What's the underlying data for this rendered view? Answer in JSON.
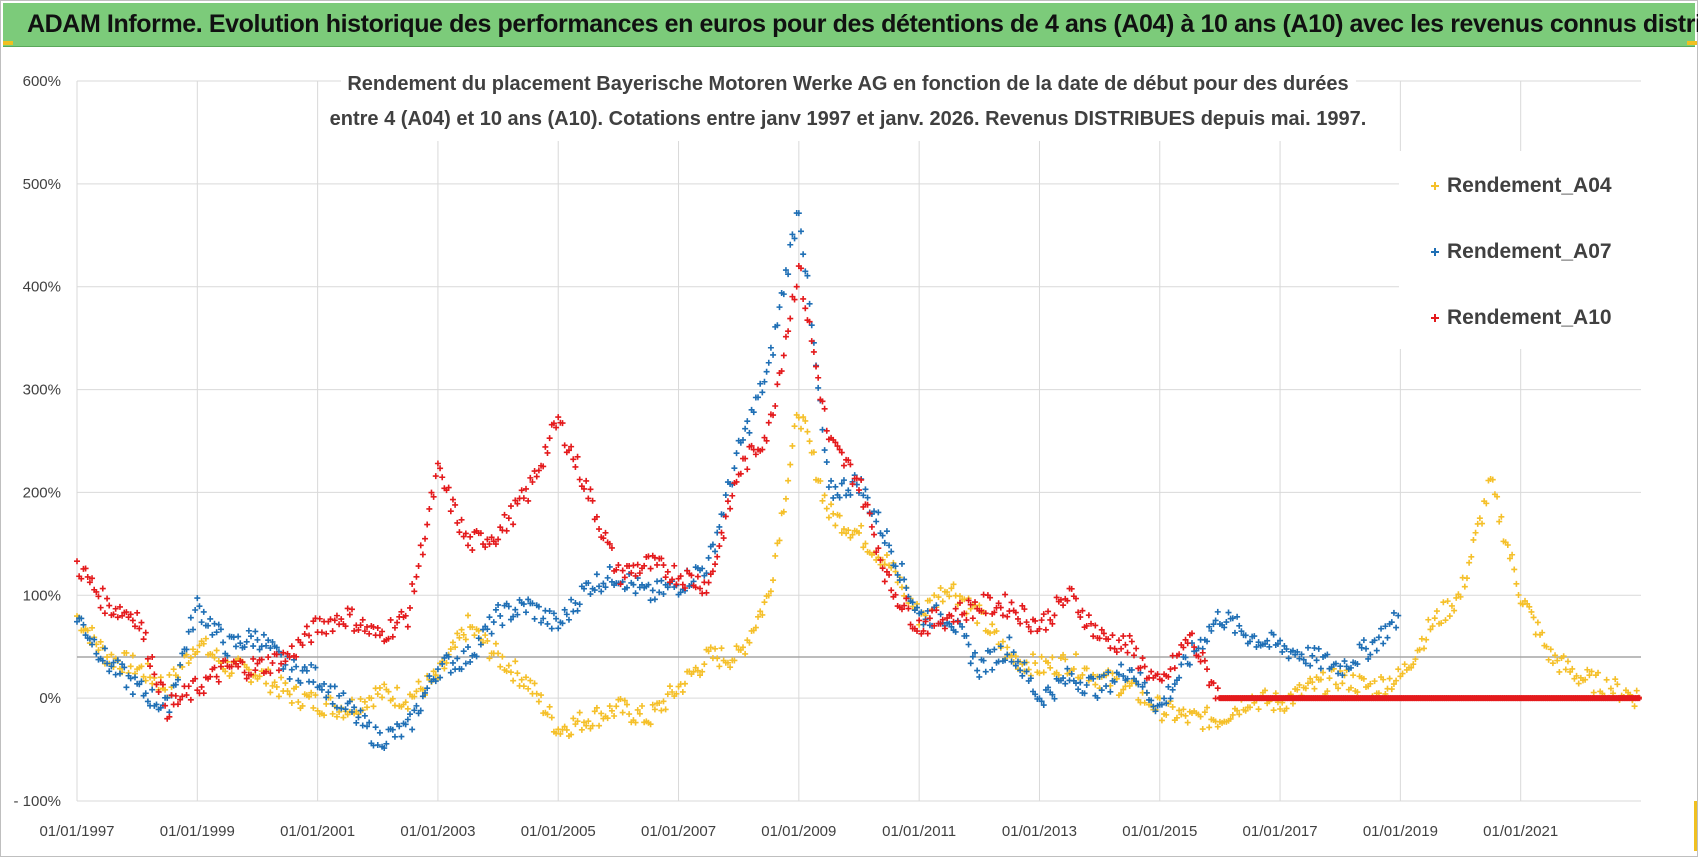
{
  "banner": {
    "title": "ADAM Informe. Evolution historique des performances en euros pour des détentions de 4 ans (A04) à 10 ans (A10) avec les revenus connus distribués"
  },
  "colors": {
    "A04": "#f5c02a",
    "A07": "#1f6fb5",
    "A10": "#e41a1c",
    "banner": "#7ccb7a",
    "grid": "#d9d9d9"
  },
  "chart_data": {
    "type": "scatter",
    "title_lines": [
      "Rendement du placement Bayerische Motoren Werke AG en fonction de la date de début pour des durées",
      "entre 4 (A04) et 10 ans (A10).  Cotations entre janv 1997 et janv. 2026. Revenus DISTRIBUES depuis mai. 1997."
    ],
    "xlabel": "",
    "ylabel": "",
    "x_range": [
      1997.0,
      2023.0
    ],
    "ylim": [
      -100,
      600
    ],
    "y_ticks": [
      600,
      500,
      400,
      300,
      200,
      100,
      0,
      -100
    ],
    "y_tick_labels": [
      "600%",
      "500%",
      "400%",
      "300%",
      "200%",
      "100%",
      "0%",
      "- 100%"
    ],
    "x_ticks": [
      1997,
      1999,
      2001,
      2003,
      2005,
      2007,
      2009,
      2011,
      2013,
      2015,
      2017,
      2019,
      2021
    ],
    "x_tick_labels": [
      "01/01/1997",
      "01/01/1999",
      "01/01/2001",
      "01/01/2003",
      "01/01/2005",
      "01/01/2007",
      "01/01/2009",
      "01/01/2011",
      "01/01/2013",
      "01/01/2015",
      "01/01/2017",
      "01/01/2019",
      "01/01/2021"
    ],
    "reference_line": 40,
    "legend_position": "top-right",
    "series": [
      {
        "name": "Rendement_A04",
        "color": "#f5c02a",
        "x": [
          1997.0,
          1997.5,
          1998.0,
          1998.5,
          1999.0,
          1999.5,
          2000.0,
          2000.5,
          2001.0,
          2001.5,
          2002.0,
          2002.5,
          2003.0,
          2003.5,
          2004.0,
          2004.5,
          2005.0,
          2005.5,
          2006.0,
          2006.5,
          2007.0,
          2007.5,
          2008.0,
          2008.5,
          2009.0,
          2009.5,
          2010.0,
          2010.5,
          2011.0,
          2011.5,
          2012.0,
          2012.5,
          2013.0,
          2013.5,
          2014.0,
          2014.5,
          2015.0,
          2015.5,
          2016.0,
          2016.5,
          2017.0,
          2017.5,
          2018.0,
          2018.5,
          2019.0,
          2019.5,
          2020.0,
          2020.5,
          2021.0,
          2021.5,
          2022.0,
          2022.5,
          2023.0
        ],
        "values": [
          80,
          40,
          30,
          10,
          55,
          30,
          25,
          5,
          -5,
          -10,
          5,
          0,
          20,
          70,
          40,
          15,
          -30,
          -20,
          -10,
          -20,
          10,
          40,
          40,
          100,
          280,
          180,
          160,
          130,
          80,
          110,
          80,
          40,
          30,
          35,
          20,
          10,
          -10,
          -20,
          -20,
          0,
          -5,
          10,
          20,
          10,
          20,
          70,
          100,
          210,
          100,
          40,
          20,
          10,
          0
        ]
      },
      {
        "name": "Rendement_A07",
        "color": "#1f6fb5",
        "x": [
          1997.0,
          1997.5,
          1998.0,
          1998.5,
          1999.0,
          1999.5,
          2000.0,
          2000.5,
          2001.0,
          2001.5,
          2002.0,
          2002.5,
          2003.0,
          2003.5,
          2004.0,
          2004.5,
          2005.0,
          2005.5,
          2006.0,
          2006.5,
          2007.0,
          2007.5,
          2008.0,
          2008.5,
          2009.0,
          2009.5,
          2010.0,
          2010.5,
          2011.0,
          2011.5,
          2012.0,
          2012.5,
          2013.0,
          2013.5,
          2014.0,
          2014.5,
          2015.0,
          2015.5,
          2016.0,
          2016.5,
          2017.0,
          2017.5,
          2018.0,
          2018.5,
          2019.0
        ],
        "values": [
          80,
          35,
          10,
          -10,
          90,
          50,
          60,
          30,
          20,
          -10,
          -40,
          -30,
          30,
          40,
          80,
          90,
          70,
          110,
          120,
          100,
          110,
          130,
          240,
          320,
          480,
          200,
          210,
          150,
          80,
          80,
          30,
          50,
          0,
          20,
          10,
          30,
          -10,
          40,
          80,
          60,
          50,
          40,
          30,
          50,
          80
        ]
      },
      {
        "name": "Rendement_A10",
        "color": "#e41a1c",
        "x": [
          1997.0,
          1997.5,
          1998.0,
          1998.5,
          1999.0,
          1999.5,
          2000.0,
          2000.5,
          2001.0,
          2001.5,
          2002.0,
          2002.5,
          2003.0,
          2003.5,
          2004.0,
          2004.5,
          2005.0,
          2005.5,
          2006.0,
          2006.5,
          2007.0,
          2007.5,
          2008.0,
          2008.5,
          2009.0,
          2009.5,
          2010.0,
          2010.5,
          2011.0,
          2011.5,
          2012.0,
          2012.5,
          2013.0,
          2013.5,
          2014.0,
          2014.5,
          2015.0,
          2015.5,
          2016.0,
          2016.5,
          2017.0,
          2017.5,
          2018.0,
          2018.5,
          2019.0,
          2019.5,
          2020.0,
          2020.5,
          2021.0,
          2021.5,
          2022.0,
          2022.5,
          2023.0
        ],
        "values": [
          130,
          90,
          80,
          -10,
          10,
          30,
          30,
          40,
          70,
          80,
          60,
          80,
          220,
          150,
          160,
          200,
          270,
          200,
          120,
          130,
          120,
          110,
          220,
          260,
          420,
          250,
          210,
          110,
          70,
          80,
          90,
          90,
          70,
          100,
          60,
          50,
          10,
          60,
          0,
          0,
          0,
          0,
          0,
          0,
          0,
          0,
          0,
          0,
          0,
          0,
          0,
          0,
          0
        ]
      }
    ]
  }
}
